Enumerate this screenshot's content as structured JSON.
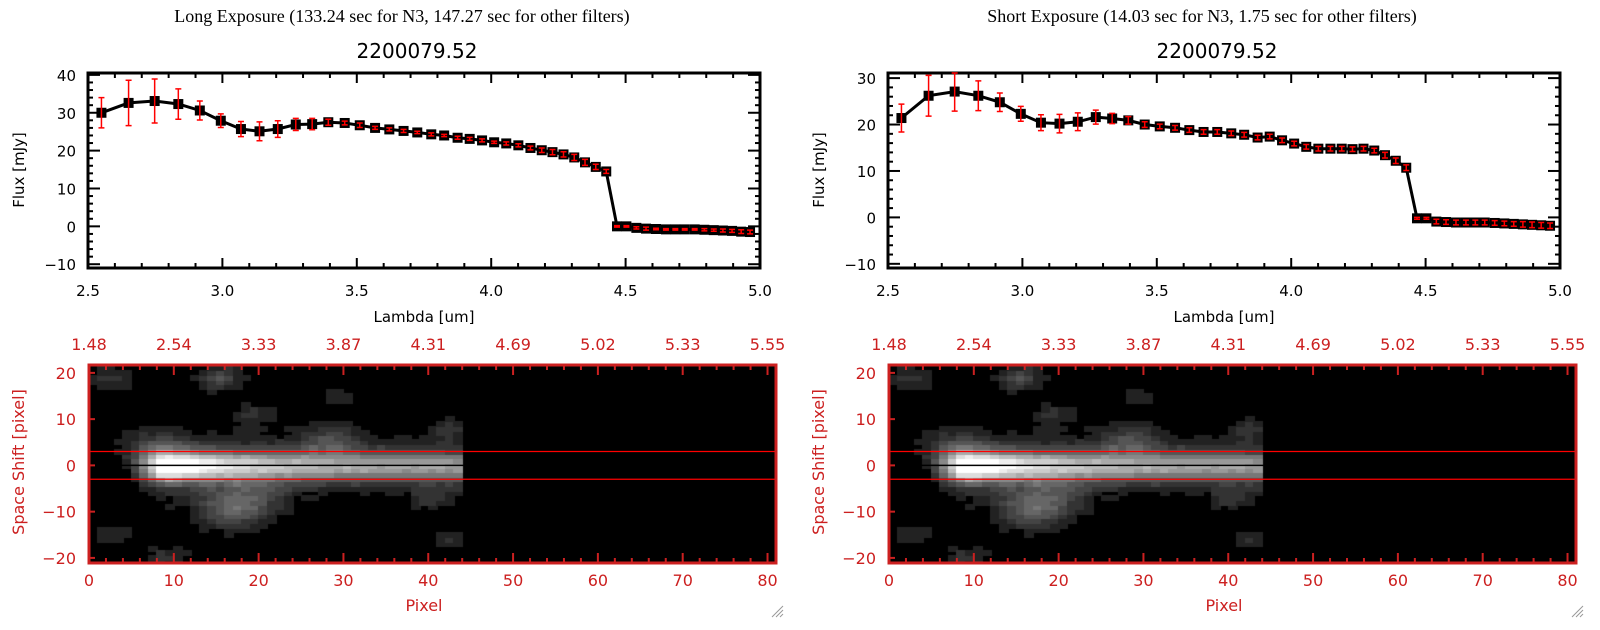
{
  "colors": {
    "axis_red": "#cc2020",
    "errorbar_red": "#ff0000",
    "line": "#000000",
    "aperture_line": "#ff0000"
  },
  "chart_data": [
    {
      "type": "line",
      "panel": "left",
      "title": "Long Exposure (133.24 sec for N3, 147.27 sec for other filters)",
      "subtitle": "2200079.52",
      "xlabel": "Lambda [um]",
      "ylabel": "Flux [mJy]",
      "xlim": [
        2.5,
        5.0
      ],
      "ylim": [
        -11,
        40.5
      ],
      "xticks": [
        "2.5",
        "3.0",
        "3.5",
        "4.0",
        "4.5",
        "5.0"
      ],
      "yticks": [
        "-10",
        "0",
        "10",
        "20",
        "30",
        "40"
      ],
      "x": [
        2.55,
        2.651,
        2.748,
        2.836,
        2.916,
        2.994,
        3.069,
        3.138,
        3.206,
        3.273,
        3.334,
        3.394,
        3.455,
        3.511,
        3.568,
        3.621,
        3.674,
        3.725,
        3.777,
        3.825,
        3.875,
        3.92,
        3.966,
        4.011,
        4.056,
        4.101,
        4.146,
        4.188,
        4.228,
        4.269,
        4.309,
        4.349,
        4.389,
        4.428,
        4.468,
        4.503,
        4.54,
        4.576,
        4.613,
        4.65,
        4.685,
        4.72,
        4.757,
        4.793,
        4.828,
        4.862,
        4.896,
        4.93,
        4.963
      ],
      "y": [
        30.0,
        32.6,
        33.1,
        32.3,
        30.6,
        27.9,
        25.7,
        25.1,
        25.7,
        26.9,
        27.0,
        27.5,
        27.3,
        26.7,
        26.0,
        25.6,
        25.2,
        24.8,
        24.3,
        24.0,
        23.4,
        23.1,
        22.7,
        22.2,
        21.9,
        21.4,
        20.7,
        20.1,
        19.6,
        19.0,
        18.2,
        16.9,
        15.7,
        14.5,
        0.0,
        0.0,
        -0.4,
        -0.6,
        -0.7,
        -0.8,
        -0.8,
        -0.8,
        -0.8,
        -0.9,
        -1.0,
        -1.1,
        -1.2,
        -1.4,
        -1.5
      ],
      "err": [
        4.0,
        6.0,
        5.8,
        4.0,
        2.5,
        1.8,
        2.0,
        2.5,
        2.2,
        1.6,
        1.5,
        0.8,
        0.5,
        0.6,
        0.4,
        0.4,
        0.4,
        0.3,
        0.4,
        0.3,
        0.4,
        0.4,
        0.4,
        0.3,
        0.4,
        0.4,
        0.5,
        0.6,
        0.7,
        0.7,
        0.8,
        0.8,
        0.7,
        0.5,
        0.2,
        0.2,
        0.3,
        0.4,
        0.2,
        0.2,
        0.2,
        0.2,
        0.2,
        0.3,
        0.3,
        0.4,
        0.4,
        0.5,
        0.5
      ]
    },
    {
      "type": "heatmap",
      "panel": "left",
      "xlabel": "Pixel",
      "ylabel": "Space Shift [pixel]",
      "xlim": [
        0,
        81
      ],
      "ylim": [
        -21.1,
        21.7
      ],
      "xticks": [
        "0",
        "10",
        "20",
        "30",
        "40",
        "50",
        "60",
        "70",
        "80"
      ],
      "yticks": [
        "-20",
        "-10",
        "0",
        "10",
        "20"
      ],
      "top_axis_labels": [
        "1.48",
        "2.54",
        "3.33",
        "3.87",
        "4.31",
        "4.69",
        "5.02",
        "5.33",
        "5.55"
      ],
      "aperture": [
        -3,
        3
      ],
      "center": 0,
      "source_extent_pixel": 44,
      "peak_pixel": 9
    },
    {
      "type": "line",
      "panel": "right",
      "title": "Short Exposure (14.03 sec for N3, 1.75 sec for other filters)",
      "subtitle": "2200079.52",
      "xlabel": "Lambda [um]",
      "ylabel": "Flux [mJy]",
      "xlim": [
        2.5,
        5.0
      ],
      "ylim": [
        -10.9,
        31.1
      ],
      "xticks": [
        "2.5",
        "3.0",
        "3.5",
        "4.0",
        "4.5",
        "5.0"
      ],
      "yticks": [
        "-10",
        "0",
        "10",
        "20",
        "30"
      ],
      "x": [
        2.55,
        2.651,
        2.748,
        2.836,
        2.916,
        2.994,
        3.069,
        3.138,
        3.206,
        3.273,
        3.334,
        3.394,
        3.455,
        3.511,
        3.568,
        3.621,
        3.674,
        3.725,
        3.777,
        3.825,
        3.875,
        3.92,
        3.966,
        4.011,
        4.056,
        4.101,
        4.146,
        4.188,
        4.228,
        4.269,
        4.309,
        4.349,
        4.389,
        4.428,
        4.468,
        4.503,
        4.54,
        4.576,
        4.613,
        4.65,
        4.685,
        4.72,
        4.757,
        4.793,
        4.828,
        4.862,
        4.896,
        4.93,
        4.963
      ],
      "y": [
        21.4,
        26.2,
        27.1,
        26.2,
        24.8,
        22.3,
        20.4,
        20.2,
        20.6,
        21.6,
        21.3,
        20.9,
        20.0,
        19.6,
        19.3,
        18.8,
        18.4,
        18.4,
        18.1,
        17.8,
        17.2,
        17.4,
        16.6,
        15.9,
        15.2,
        14.8,
        14.8,
        14.8,
        14.7,
        14.8,
        14.4,
        13.4,
        12.2,
        10.7,
        -0.2,
        -0.2,
        -0.9,
        -1.0,
        -1.1,
        -1.1,
        -1.1,
        -1.1,
        -1.2,
        -1.3,
        -1.4,
        -1.5,
        -1.6,
        -1.7,
        -1.8
      ],
      "err": [
        3.0,
        4.4,
        4.2,
        3.2,
        2.0,
        1.6,
        1.7,
        2.0,
        1.9,
        1.5,
        1.1,
        0.8,
        0.6,
        0.5,
        0.5,
        0.5,
        0.5,
        0.5,
        0.5,
        0.5,
        0.5,
        0.5,
        0.5,
        0.5,
        0.5,
        0.5,
        0.5,
        0.5,
        0.5,
        0.5,
        0.5,
        0.6,
        0.6,
        0.6,
        0.2,
        0.2,
        0.5,
        0.5,
        0.5,
        0.5,
        0.5,
        0.5,
        0.5,
        0.5,
        0.5,
        0.6,
        0.6,
        0.6,
        0.6
      ]
    },
    {
      "type": "heatmap",
      "panel": "right",
      "xlabel": "Pixel",
      "ylabel": "Space Shift [pixel]",
      "xlim": [
        0,
        81
      ],
      "ylim": [
        -21.1,
        21.7
      ],
      "xticks": [
        "0",
        "10",
        "20",
        "30",
        "40",
        "50",
        "60",
        "70",
        "80"
      ],
      "yticks": [
        "-20",
        "-10",
        "0",
        "10",
        "20"
      ],
      "top_axis_labels": [
        "1.48",
        "2.54",
        "3.33",
        "3.87",
        "4.31",
        "4.69",
        "5.02",
        "5.33",
        "5.55"
      ],
      "aperture": [
        -3,
        3
      ],
      "center": 0,
      "source_extent_pixel": 44,
      "peak_pixel": 9
    }
  ]
}
